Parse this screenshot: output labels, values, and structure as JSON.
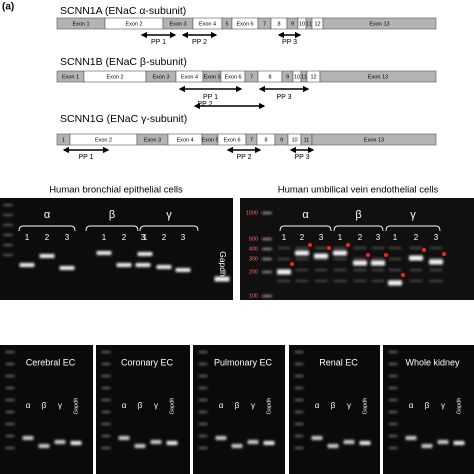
{
  "panel_label": "(a)",
  "genes": [
    {
      "title": "SCNN1A (ENaC α-subunit)",
      "exons": [
        "Exon 1",
        "Exon 2",
        "Exon 3",
        "Exon 4",
        "5",
        "Exon 6",
        "7",
        "8",
        "9",
        "10",
        "11",
        "12",
        "Exon 13"
      ],
      "primer_pairs": [
        "PP 1",
        "PP 2",
        "PP 3"
      ]
    },
    {
      "title": "SCNN1B (ENaC β-subunit)",
      "exons": [
        "Exon 1",
        "Exon 2",
        "Exon 3",
        "Exon 4",
        "Exon 5",
        "Exon 6",
        "7",
        "8",
        "9",
        "10",
        "11",
        "12",
        "Exon 13"
      ],
      "primer_pairs": [
        "PP 1",
        "PP 2",
        "PP 3"
      ]
    },
    {
      "title": "SCNN1G (ENaC γ-subunit)",
      "exons": [
        "1",
        "Exon 2",
        "Exon 3",
        "Exon 4",
        "Exon 5",
        "Exon 6",
        "7",
        "8",
        "9",
        "10",
        "11",
        "Exon 13"
      ],
      "primer_pairs": [
        "PP 1",
        "PP 2",
        "PP 3"
      ]
    }
  ],
  "gels": [
    {
      "title": "Human bronchial epithelial cells",
      "groups": [
        "α",
        "β",
        "γ"
      ],
      "lanes": [
        "1",
        "2",
        "3"
      ],
      "control": "Gapdh"
    },
    {
      "title": "Human umbilical vein endothelial cells",
      "ladder": [
        "1000",
        "500",
        "400",
        "300",
        "200",
        "100"
      ],
      "groups": [
        "α",
        "β",
        "γ"
      ],
      "lanes": [
        "1",
        "2",
        "3"
      ]
    }
  ],
  "tissue_gels": [
    {
      "title": "Cerebral EC",
      "lanes": [
        "α",
        "β",
        "γ",
        "Gapdh"
      ]
    },
    {
      "title": "Coronary EC",
      "lanes": [
        "α",
        "β",
        "γ",
        "Gapdh"
      ]
    },
    {
      "title": "Pulmonary EC",
      "lanes": [
        "α",
        "β",
        "γ",
        "Gapdh"
      ]
    },
    {
      "title": "Renal EC",
      "lanes": [
        "α",
        "β",
        "γ",
        "Gapdh"
      ]
    },
    {
      "title": "Whole kidney",
      "lanes": [
        "α",
        "β",
        "γ",
        "Gapdh"
      ]
    }
  ]
}
